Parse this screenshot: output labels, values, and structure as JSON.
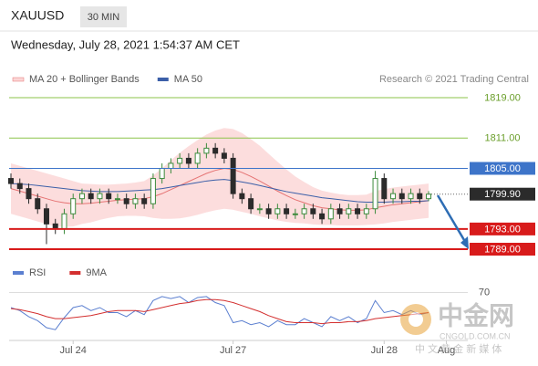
{
  "chart_data": {
    "type": "candlestick",
    "symbol": "XAUUSD",
    "timeframe": "30 MIN",
    "subtitle": "Wednesday, July 28, 2021 1:54:37 AM CET",
    "source": "Research © 2021 Trading Central",
    "xlim": [
      0,
      51
    ],
    "ylim": [
      1786,
      1820
    ],
    "xticks": [
      {
        "value": 7,
        "label": "Jul 24"
      },
      {
        "value": 25,
        "label": "Jul 27"
      },
      {
        "value": 42,
        "label": "Jul 28"
      },
      {
        "value": 49,
        "label": "Aug"
      }
    ],
    "candles": {
      "up_color": "#3d8b3d",
      "down_color": "#2b2b2b",
      "open": [
        1803,
        1802,
        1801,
        1799,
        1797,
        1794,
        1793,
        1796,
        1799,
        1800,
        1799,
        1800,
        1799,
        1799,
        1798,
        1799,
        1798,
        1803,
        1805,
        1806,
        1807,
        1806,
        1808,
        1809,
        1808,
        1807,
        1800,
        1799,
        1797,
        1797,
        1796,
        1797,
        1796,
        1796,
        1797,
        1796,
        1795,
        1797,
        1796,
        1797,
        1796,
        1797,
        1803,
        1799,
        1800,
        1799,
        1800,
        1799
      ],
      "high": [
        1804,
        1803,
        1802,
        1800,
        1798,
        1795,
        1797,
        1800,
        1801,
        1801,
        1801,
        1801,
        1800,
        1800,
        1800,
        1800,
        1804,
        1806,
        1807,
        1808,
        1808,
        1809,
        1810,
        1810,
        1809,
        1808,
        1801,
        1800,
        1798,
        1798,
        1798,
        1798,
        1797,
        1798,
        1798,
        1797,
        1798,
        1798,
        1798,
        1798,
        1798,
        1804.5,
        1804,
        1801,
        1801,
        1801,
        1801,
        1800.5
      ],
      "low": [
        1801,
        1800,
        1798,
        1796,
        1790,
        1792,
        1792,
        1795,
        1798,
        1798,
        1798,
        1798,
        1798,
        1797,
        1797,
        1797,
        1797,
        1802,
        1804,
        1805,
        1805,
        1805,
        1807,
        1807,
        1806,
        1799,
        1798,
        1796,
        1796,
        1795,
        1795,
        1795,
        1795,
        1795,
        1795,
        1794,
        1794,
        1795,
        1795,
        1795,
        1795,
        1796,
        1798,
        1798,
        1798,
        1798,
        1798,
        1798.5
      ],
      "close": [
        1802,
        1801,
        1799,
        1797,
        1794,
        1793,
        1796,
        1799,
        1800,
        1799,
        1800,
        1799,
        1799,
        1798,
        1799,
        1798,
        1803,
        1805,
        1806,
        1807,
        1806,
        1808,
        1809,
        1808,
        1807,
        1800,
        1799,
        1797,
        1797,
        1796,
        1797,
        1796,
        1796,
        1797,
        1796,
        1795,
        1797,
        1796,
        1797,
        1796,
        1797,
        1803,
        1799,
        1800,
        1799,
        1800,
        1799,
        1799.9
      ]
    },
    "overlays": [
      {
        "name": "MA 20 + Bollinger Bands",
        "color": "#e57373",
        "band_color": "#fbd5d5",
        "values": [
          1801,
          1800.5,
          1800,
          1799.5,
          1799,
          1798.5,
          1798.2,
          1798,
          1798,
          1798.1,
          1798.3,
          1798.5,
          1798.7,
          1798.8,
          1798.9,
          1799,
          1799.4,
          1800,
          1800.8,
          1801.6,
          1802.4,
          1803.2,
          1804,
          1804.6,
          1805,
          1804.8,
          1804.2,
          1803.4,
          1802.5,
          1801.5,
          1800.5,
          1799.6,
          1798.8,
          1798.2,
          1797.6,
          1797.2,
          1797,
          1796.8,
          1796.7,
          1796.7,
          1796.8,
          1797.2,
          1797.5,
          1797.8,
          1798,
          1798.2,
          1798.4,
          1798.6
        ],
        "upper": [
          1806,
          1805.5,
          1805,
          1804.5,
          1804,
          1803.5,
          1803,
          1802.5,
          1802,
          1801.9,
          1801.8,
          1801.8,
          1801.9,
          1802,
          1802.2,
          1802.5,
          1803.6,
          1805,
          1806.6,
          1808.1,
          1809.4,
          1810.6,
          1811.7,
          1812.5,
          1813,
          1812.8,
          1812,
          1810.8,
          1809.5,
          1807.9,
          1806.3,
          1804.8,
          1803.4,
          1802.3,
          1801.3,
          1800.6,
          1800.2,
          1799.9,
          1799.7,
          1799.7,
          1799.8,
          1800.5,
          1800.9,
          1801.2,
          1801.4,
          1801.6,
          1801.8,
          1802
        ],
        "lower": [
          1796,
          1795.5,
          1795,
          1794.5,
          1794,
          1793.5,
          1793.4,
          1793.5,
          1794,
          1794.3,
          1794.8,
          1795.2,
          1795.5,
          1795.6,
          1795.6,
          1795.5,
          1795.2,
          1795,
          1795,
          1795.1,
          1795.4,
          1795.8,
          1796.3,
          1796.7,
          1797,
          1796.8,
          1796.4,
          1796,
          1795.5,
          1795.1,
          1794.7,
          1794.4,
          1794.2,
          1794.1,
          1793.9,
          1793.8,
          1793.8,
          1793.7,
          1793.7,
          1793.7,
          1793.8,
          1793.9,
          1794.1,
          1794.4,
          1794.6,
          1794.8,
          1795,
          1795.2
        ]
      },
      {
        "name": "MA 50",
        "color": "#3b5fa8",
        "values": [
          1802,
          1801.9,
          1801.8,
          1801.6,
          1801.4,
          1801.2,
          1801,
          1800.8,
          1800.6,
          1800.5,
          1800.4,
          1800.4,
          1800.4,
          1800.5,
          1800.6,
          1800.7,
          1800.8,
          1801,
          1801.3,
          1801.6,
          1801.9,
          1802.2,
          1802.5,
          1802.7,
          1802.8,
          1802.6,
          1802.3,
          1802,
          1801.6,
          1801.2,
          1800.8,
          1800.4,
          1800.1,
          1799.8,
          1799.5,
          1799.2,
          1799,
          1798.8,
          1798.6,
          1798.4,
          1798.3,
          1798.3,
          1798.3,
          1798.4,
          1798.4,
          1798.5,
          1798.5,
          1798.6
        ]
      }
    ],
    "levels": [
      {
        "value": 1819,
        "label": "1819.00",
        "color": "#8bc34a",
        "style": "outline"
      },
      {
        "value": 1811,
        "label": "1811.00",
        "color": "#8bc34a",
        "style": "outline"
      },
      {
        "value": 1805,
        "label": "1805.00",
        "color": "#3d74c9",
        "style": "filled"
      },
      {
        "value": 1799.9,
        "label": "1799.90",
        "color": "#2b2b2b",
        "style": "current"
      },
      {
        "value": 1793,
        "label": "1793.00",
        "color": "#d81b1b",
        "style": "filled"
      },
      {
        "value": 1789,
        "label": "1789.00",
        "color": "#d81b1b",
        "style": "filled"
      }
    ],
    "rsi": {
      "ylim": [
        25,
        75
      ],
      "yticks": [
        70
      ],
      "series": [
        {
          "name": "RSI",
          "color": "#5b7fd0",
          "values": [
            55,
            52,
            46,
            42,
            35,
            33,
            45,
            55,
            57,
            52,
            55,
            50,
            50,
            46,
            52,
            48,
            62,
            66,
            64,
            66,
            60,
            65,
            66,
            60,
            57,
            40,
            42,
            38,
            40,
            36,
            42,
            38,
            38,
            44,
            40,
            36,
            46,
            42,
            46,
            40,
            44,
            62,
            50,
            52,
            48,
            52,
            48,
            50
          ]
        },
        {
          "name": "9MA",
          "color": "#d32f2f",
          "values": [
            54,
            53,
            51,
            49,
            46,
            44,
            44,
            45,
            46,
            47,
            49,
            51,
            52,
            52,
            52,
            51,
            53,
            55,
            57,
            59,
            60,
            62,
            63,
            63,
            62,
            60,
            57,
            54,
            51,
            47,
            44,
            41,
            40,
            40,
            40,
            39,
            40,
            40,
            41,
            41,
            42,
            44,
            45,
            46,
            47,
            48,
            49,
            50
          ]
        }
      ]
    }
  },
  "watermark": {
    "name": "中金网",
    "domain": "CNGOLD.COM.CN",
    "slogan": "中 文 黄 金 新 媒 体"
  }
}
